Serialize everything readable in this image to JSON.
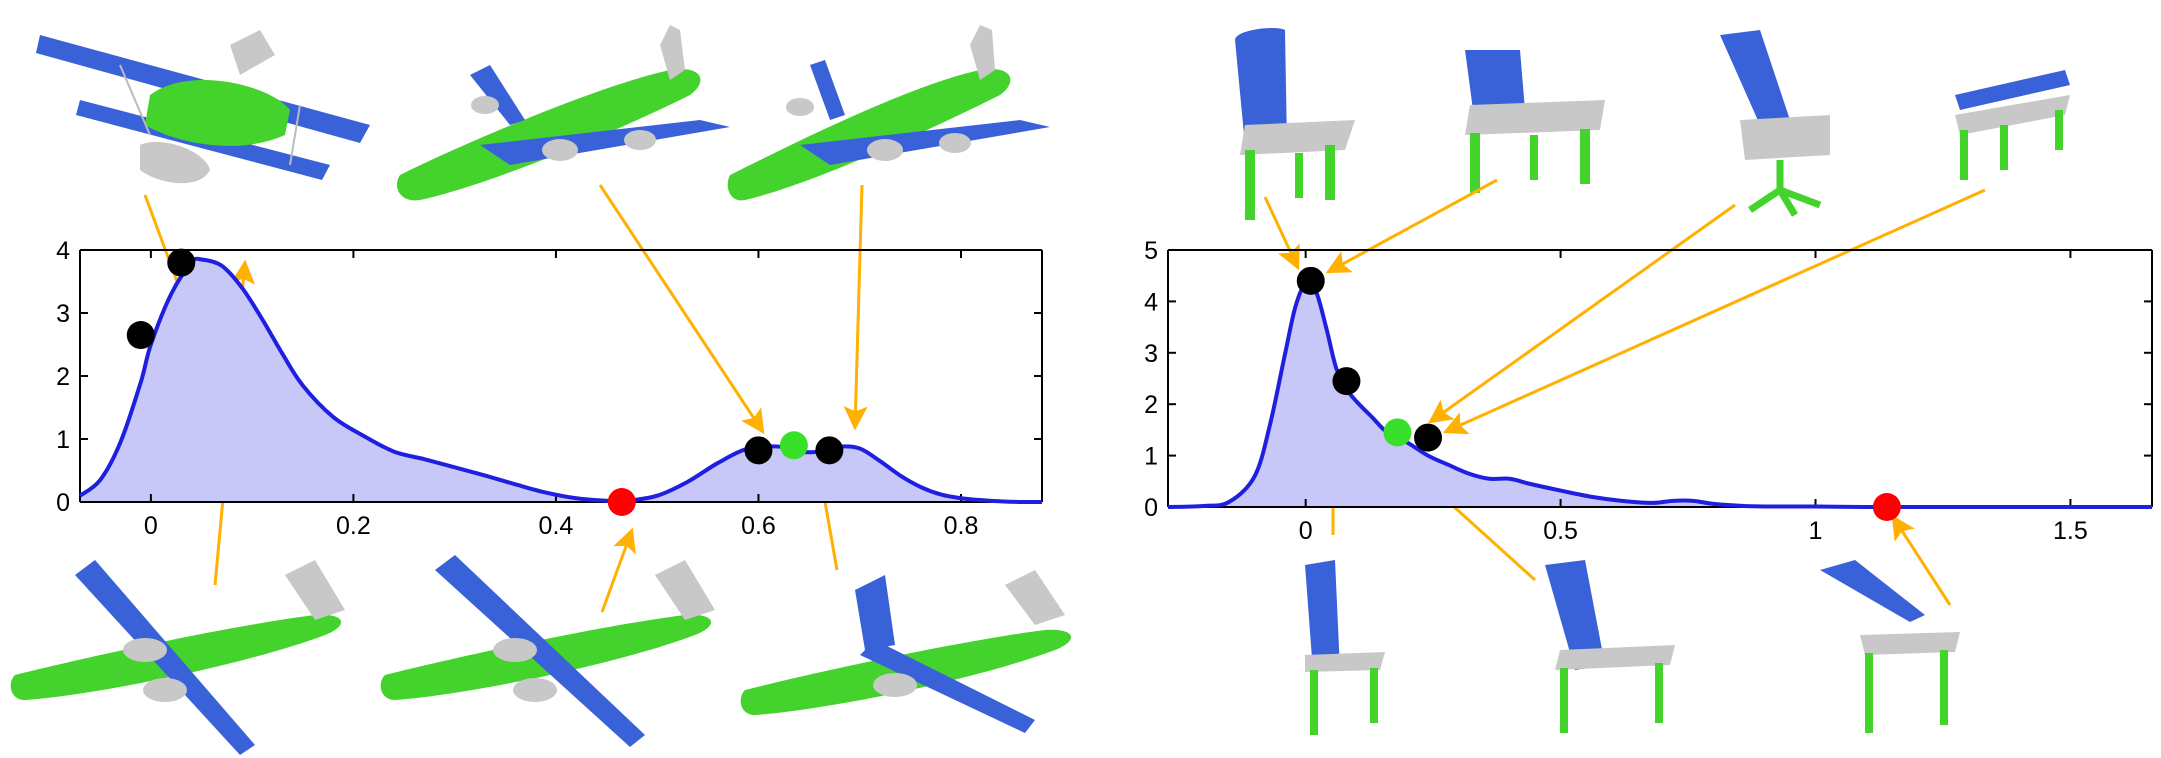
{
  "colors": {
    "curve": "#1f1fe0",
    "fill": "#c8c8f8",
    "axis": "#000000",
    "arrow": "#ffb000",
    "marker_black": "#000000",
    "marker_green": "#38e02a",
    "marker_red": "#ff0000",
    "part_blue": "#3a62d8",
    "part_green": "#44d22c",
    "part_gray": "#c8c8c8"
  },
  "icons": [
    "biplane-icon",
    "airliner-icon",
    "turboprop-icon",
    "chair-icon",
    "swivel-chair-icon",
    "bench-icon",
    "table-icon"
  ],
  "chart_data": [
    {
      "type": "area",
      "subject": "airplanes",
      "xlim": [
        -0.07,
        0.88
      ],
      "ylim": [
        0,
        4
      ],
      "x_ticks": [
        0,
        0.2,
        0.4,
        0.6,
        0.8
      ],
      "x_tick_labels": [
        "0",
        "0.2",
        "0.4",
        "0.6",
        "0.8"
      ],
      "y_ticks": [
        0,
        1,
        2,
        3,
        4
      ],
      "y_tick_labels": [
        "0",
        "1",
        "2",
        "3",
        "4"
      ],
      "grid": false,
      "curve": {
        "x": [
          -0.07,
          -0.05,
          -0.03,
          -0.01,
          0.0,
          0.02,
          0.04,
          0.05,
          0.07,
          0.09,
          0.11,
          0.13,
          0.15,
          0.18,
          0.21,
          0.24,
          0.27,
          0.3,
          0.33,
          0.36,
          0.39,
          0.42,
          0.45,
          0.47,
          0.5,
          0.53,
          0.56,
          0.59,
          0.62,
          0.64,
          0.66,
          0.68,
          0.7,
          0.72,
          0.74,
          0.76,
          0.78,
          0.8,
          0.82,
          0.84,
          0.86,
          0.88
        ],
        "y": [
          0.1,
          0.35,
          0.95,
          1.9,
          2.5,
          3.3,
          3.8,
          3.85,
          3.75,
          3.4,
          2.9,
          2.35,
          1.85,
          1.35,
          1.05,
          0.8,
          0.68,
          0.55,
          0.42,
          0.28,
          0.15,
          0.06,
          0.02,
          0.02,
          0.1,
          0.32,
          0.62,
          0.85,
          0.88,
          0.8,
          0.8,
          0.88,
          0.85,
          0.65,
          0.42,
          0.24,
          0.12,
          0.06,
          0.03,
          0.01,
          0.0,
          0.0
        ]
      },
      "markers": [
        {
          "x": -0.01,
          "y": 2.65,
          "color": "black"
        },
        {
          "x": 0.03,
          "y": 3.8,
          "color": "black"
        },
        {
          "x": 0.465,
          "y": 0.0,
          "color": "red"
        },
        {
          "x": 0.6,
          "y": 0.82,
          "color": "black"
        },
        {
          "x": 0.635,
          "y": 0.9,
          "color": "green"
        },
        {
          "x": 0.67,
          "y": 0.82,
          "color": "black"
        }
      ]
    },
    {
      "type": "area",
      "subject": "chairs",
      "xlim": [
        -0.27,
        1.66
      ],
      "ylim": [
        0,
        5
      ],
      "x_ticks": [
        0,
        0.5,
        1,
        1.5
      ],
      "x_tick_labels": [
        "0",
        "0.5",
        "1",
        "1.5"
      ],
      "y_ticks": [
        0,
        1,
        2,
        3,
        4,
        5
      ],
      "y_tick_labels": [
        "0",
        "1",
        "2",
        "3",
        "4",
        "5"
      ],
      "grid": false,
      "curve": {
        "x": [
          -0.27,
          -0.2,
          -0.15,
          -0.1,
          -0.07,
          -0.04,
          -0.02,
          0.0,
          0.02,
          0.04,
          0.06,
          0.08,
          0.1,
          0.13,
          0.16,
          0.2,
          0.24,
          0.28,
          0.32,
          0.36,
          0.4,
          0.44,
          0.5,
          0.56,
          0.62,
          0.68,
          0.72,
          0.76,
          0.8,
          0.86,
          0.92,
          1.0,
          1.1,
          1.2,
          1.3,
          1.4,
          1.5,
          1.66
        ],
        "y": [
          0.0,
          0.02,
          0.1,
          0.6,
          1.6,
          3.0,
          3.9,
          4.35,
          4.2,
          3.5,
          2.7,
          2.3,
          2.05,
          1.75,
          1.45,
          1.25,
          1.0,
          0.82,
          0.65,
          0.55,
          0.55,
          0.45,
          0.32,
          0.2,
          0.12,
          0.08,
          0.12,
          0.12,
          0.06,
          0.02,
          0.01,
          0.01,
          0.0,
          0.0,
          0.0,
          0.0,
          0.0,
          0.0
        ]
      },
      "markers": [
        {
          "x": 0.01,
          "y": 4.4,
          "color": "black"
        },
        {
          "x": 0.08,
          "y": 2.45,
          "color": "black"
        },
        {
          "x": 0.18,
          "y": 1.45,
          "color": "green"
        },
        {
          "x": 0.24,
          "y": 1.35,
          "color": "black"
        },
        {
          "x": 1.14,
          "y": 0.0,
          "color": "red"
        }
      ]
    }
  ]
}
